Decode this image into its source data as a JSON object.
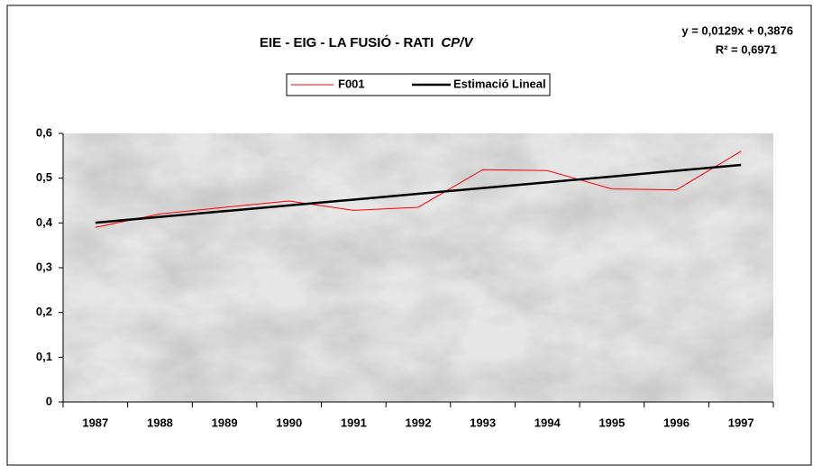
{
  "chart_data": {
    "type": "line",
    "title": "EIE - EIG - LA FUSIÓ - RATI",
    "title_italic": "CP/V",
    "annotations": [
      "y = 0,0129x + 0,3876",
      "R² = 0,6971"
    ],
    "categories": [
      "1987",
      "1988",
      "1989",
      "1990",
      "1991",
      "1992",
      "1993",
      "1994",
      "1995",
      "1996",
      "1997"
    ],
    "series": [
      {
        "name": "F001",
        "color": "#ff0000",
        "values": [
          0.39,
          0.42,
          0.435,
          0.449,
          0.428,
          0.435,
          0.519,
          0.517,
          0.476,
          0.474,
          0.56
        ]
      },
      {
        "name": "Estimació Lineal",
        "color": "#000000",
        "values": [
          0.4005,
          0.4134,
          0.4263,
          0.4392,
          0.4521,
          0.465,
          0.4779,
          0.4908,
          0.5037,
          0.5166,
          0.5295
        ]
      }
    ],
    "ylim": [
      0,
      0.6
    ],
    "yticks": [
      0,
      {
        "value": 0.1,
        "label": "0,1"
      },
      {
        "value": 0.2,
        "label": "0,2"
      },
      {
        "value": 0.3,
        "label": "0,3"
      },
      {
        "value": 0.4,
        "label": "0,4"
      },
      {
        "value": 0.5,
        "label": "0,5"
      },
      {
        "value": 0.6,
        "label": "0,6"
      }
    ]
  }
}
